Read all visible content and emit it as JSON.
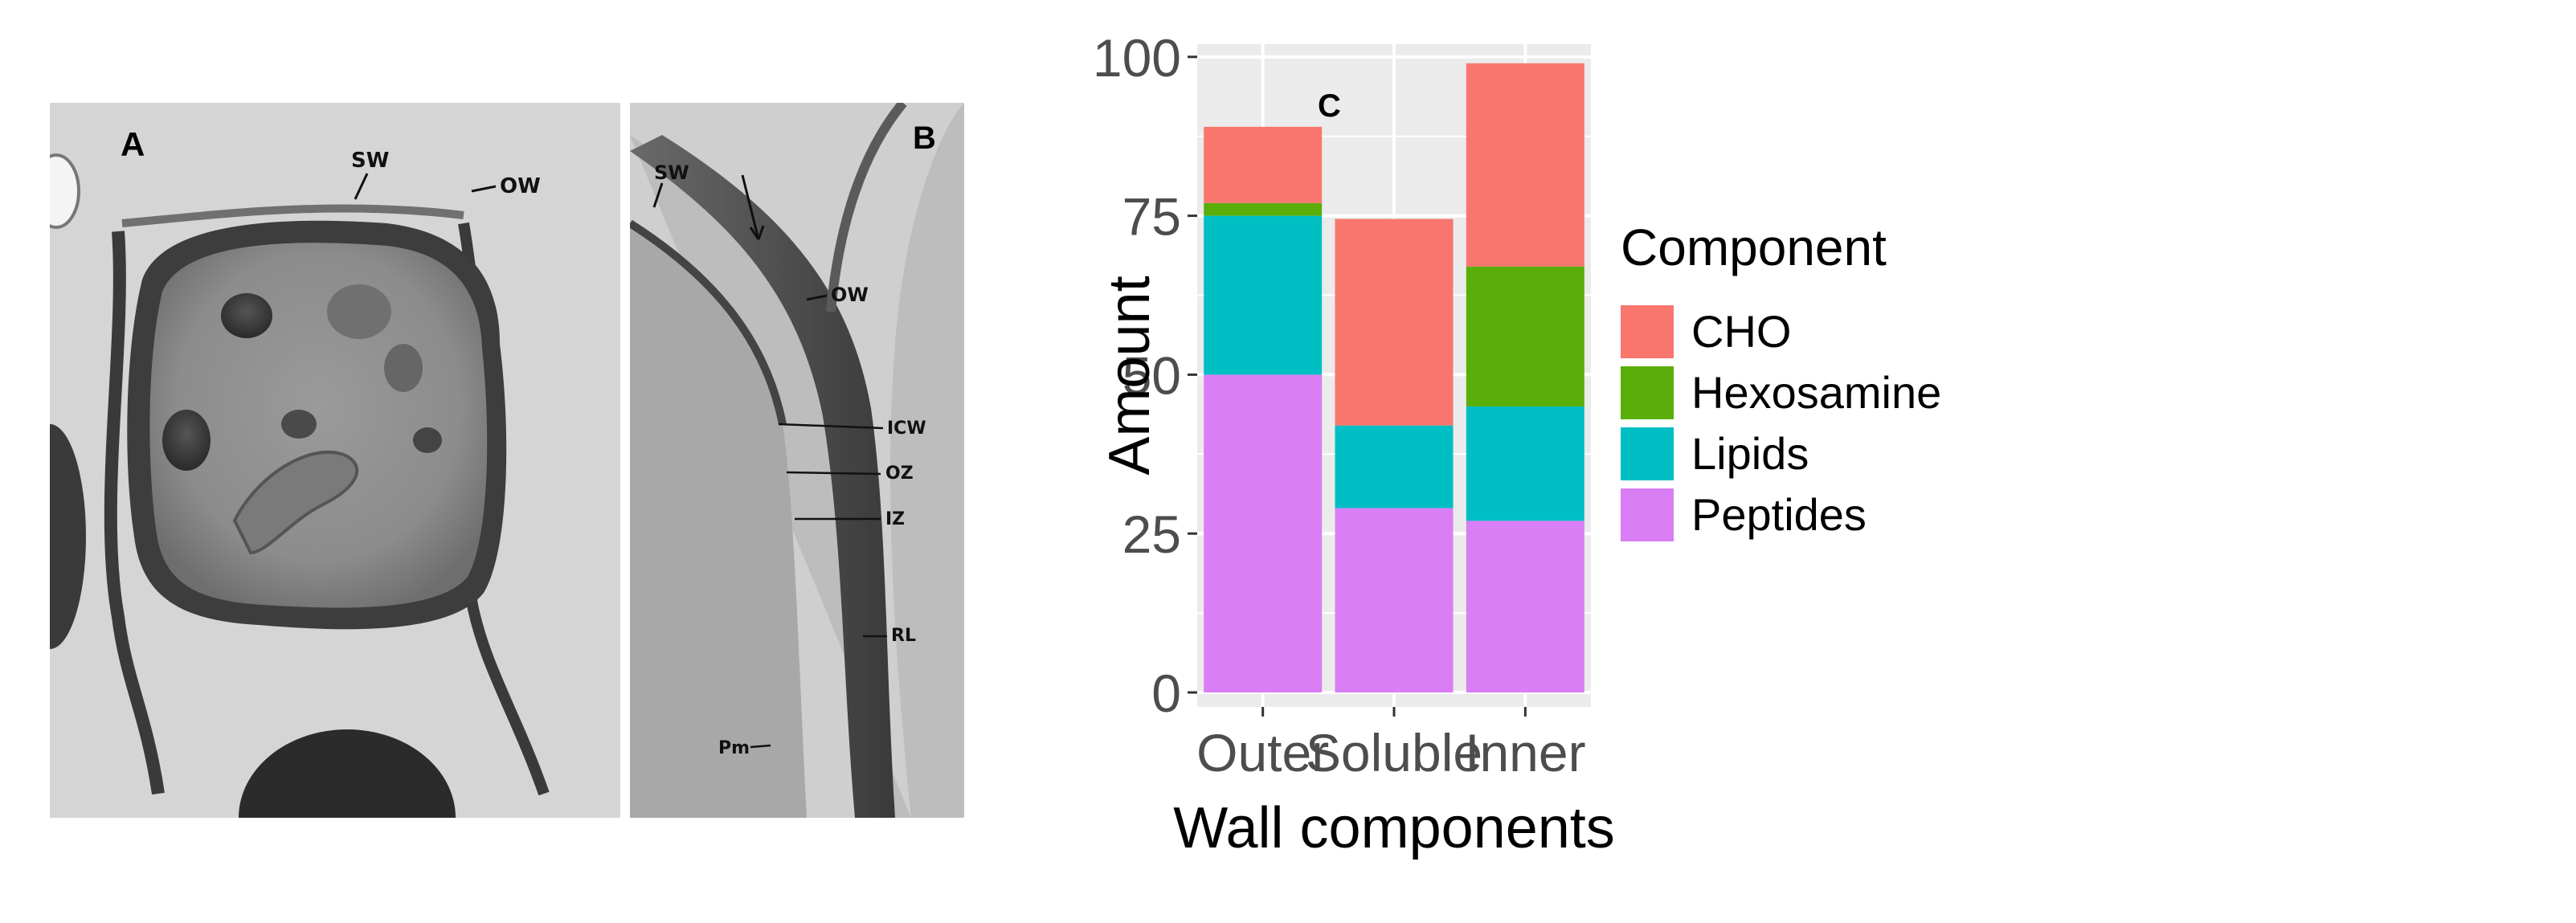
{
  "panels": {
    "a": {
      "letter": "A",
      "labels": {
        "sw": "SW",
        "ow": "OW"
      }
    },
    "b": {
      "letter": "B",
      "labels": {
        "sw": "SW",
        "ow": "OW",
        "icw": "ICW",
        "oz": "OZ",
        "iz": "IZ",
        "rl": "RL",
        "pm": "Pm"
      }
    }
  },
  "chart_data": {
    "type": "bar",
    "stacked": true,
    "panel_letter": "C",
    "categories": [
      "Outer",
      "Soluble",
      "Inner"
    ],
    "series": [
      {
        "name": "Peptides",
        "color": "#d97ef5",
        "values": [
          50,
          29,
          27
        ]
      },
      {
        "name": "Lipids",
        "color": "#00bfc4",
        "values": [
          25,
          13,
          18
        ]
      },
      {
        "name": "Hexosamine",
        "color": "#5aae0a",
        "values": [
          2,
          0,
          22
        ]
      },
      {
        "name": "CHO",
        "color": "#f8766d",
        "values": [
          12,
          32.5,
          32
        ]
      }
    ],
    "legend_order": [
      "CHO",
      "Hexosamine",
      "Lipids",
      "Peptides"
    ],
    "xlabel": "Wall components",
    "ylabel": "Amount",
    "legend_title": "Component",
    "ylim": [
      0,
      102
    ],
    "yticks": [
      0,
      25,
      50,
      75,
      100
    ],
    "grid": true,
    "panel_background": "#ebebeb",
    "legend_position": "right"
  }
}
